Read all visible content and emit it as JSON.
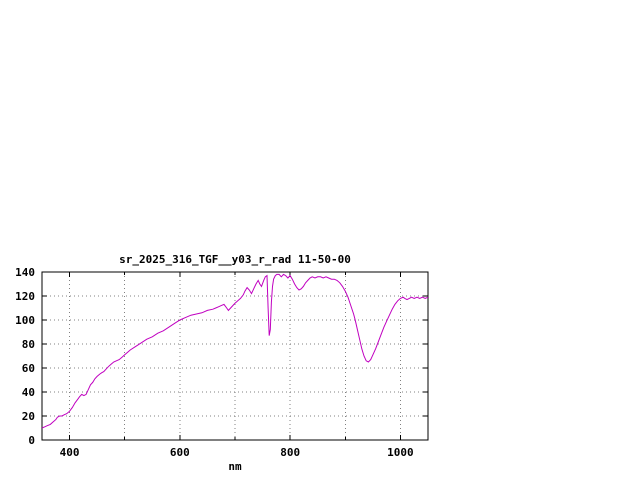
{
  "page": {
    "background": "#ffffff"
  },
  "chart_data": {
    "type": "line",
    "title": "sr_2025_316_TGF__y03_r_rad 11-50-00",
    "xlabel": "nm",
    "ylabel": "",
    "xlim": [
      350,
      1050
    ],
    "ylim": [
      0,
      140
    ],
    "xticks_labeled": [
      400,
      600,
      800,
      1000
    ],
    "xticks_minor": [
      500,
      700,
      900
    ],
    "xgrid_every": 100,
    "yticks": [
      0,
      20,
      40,
      60,
      80,
      100,
      120,
      140
    ],
    "grid": true,
    "legend": "none",
    "line_color": "#c000c0",
    "series": [
      {
        "name": "sr_2025_316_TGF__y03_r_rad",
        "points": [
          [
            350,
            10
          ],
          [
            355,
            11
          ],
          [
            360,
            12
          ],
          [
            365,
            13
          ],
          [
            370,
            15
          ],
          [
            375,
            17
          ],
          [
            378,
            19
          ],
          [
            382,
            20
          ],
          [
            386,
            20
          ],
          [
            390,
            21
          ],
          [
            395,
            22
          ],
          [
            400,
            24
          ],
          [
            405,
            27
          ],
          [
            410,
            31
          ],
          [
            415,
            34
          ],
          [
            418,
            36
          ],
          [
            422,
            38
          ],
          [
            426,
            37
          ],
          [
            430,
            38
          ],
          [
            434,
            42
          ],
          [
            438,
            46
          ],
          [
            442,
            48
          ],
          [
            446,
            51
          ],
          [
            450,
            53
          ],
          [
            455,
            55
          ],
          [
            458,
            56
          ],
          [
            462,
            57
          ],
          [
            466,
            59
          ],
          [
            470,
            61
          ],
          [
            475,
            63
          ],
          [
            480,
            65
          ],
          [
            485,
            66
          ],
          [
            490,
            67
          ],
          [
            495,
            69
          ],
          [
            500,
            71
          ],
          [
            510,
            75
          ],
          [
            520,
            78
          ],
          [
            530,
            81
          ],
          [
            540,
            84
          ],
          [
            550,
            86
          ],
          [
            560,
            89
          ],
          [
            570,
            91
          ],
          [
            580,
            94
          ],
          [
            590,
            97
          ],
          [
            600,
            100
          ],
          [
            610,
            102
          ],
          [
            620,
            104
          ],
          [
            630,
            105
          ],
          [
            640,
            106
          ],
          [
            650,
            108
          ],
          [
            660,
            109
          ],
          [
            665,
            110
          ],
          [
            670,
            111
          ],
          [
            675,
            112
          ],
          [
            680,
            113
          ],
          [
            685,
            110
          ],
          [
            688,
            108
          ],
          [
            692,
            110
          ],
          [
            696,
            112
          ],
          [
            700,
            114
          ],
          [
            705,
            116
          ],
          [
            710,
            118
          ],
          [
            715,
            121
          ],
          [
            718,
            124
          ],
          [
            722,
            127
          ],
          [
            726,
            125
          ],
          [
            730,
            122
          ],
          [
            734,
            126
          ],
          [
            738,
            130
          ],
          [
            742,
            133
          ],
          [
            745,
            130
          ],
          [
            748,
            128
          ],
          [
            752,
            133
          ],
          [
            755,
            136
          ],
          [
            758,
            137
          ],
          [
            760,
            110
          ],
          [
            762,
            87
          ],
          [
            764,
            92
          ],
          [
            766,
            115
          ],
          [
            768,
            128
          ],
          [
            770,
            134
          ],
          [
            773,
            137
          ],
          [
            776,
            138
          ],
          [
            780,
            138
          ],
          [
            784,
            136
          ],
          [
            788,
            138
          ],
          [
            792,
            137
          ],
          [
            796,
            135
          ],
          [
            800,
            137
          ],
          [
            804,
            134
          ],
          [
            808,
            130
          ],
          [
            812,
            127
          ],
          [
            816,
            125
          ],
          [
            820,
            126
          ],
          [
            824,
            128
          ],
          [
            828,
            131
          ],
          [
            832,
            133
          ],
          [
            836,
            135
          ],
          [
            840,
            136
          ],
          [
            845,
            135
          ],
          [
            850,
            136
          ],
          [
            855,
            136
          ],
          [
            860,
            135
          ],
          [
            865,
            136
          ],
          [
            870,
            135
          ],
          [
            875,
            134
          ],
          [
            880,
            134
          ],
          [
            885,
            133
          ],
          [
            890,
            131
          ],
          [
            895,
            128
          ],
          [
            900,
            124
          ],
          [
            905,
            119
          ],
          [
            910,
            112
          ],
          [
            915,
            105
          ],
          [
            918,
            100
          ],
          [
            922,
            92
          ],
          [
            926,
            84
          ],
          [
            930,
            76
          ],
          [
            934,
            70
          ],
          [
            938,
            66
          ],
          [
            942,
            65
          ],
          [
            946,
            67
          ],
          [
            950,
            71
          ],
          [
            955,
            76
          ],
          [
            960,
            82
          ],
          [
            965,
            88
          ],
          [
            970,
            94
          ],
          [
            975,
            99
          ],
          [
            980,
            104
          ],
          [
            985,
            109
          ],
          [
            990,
            113
          ],
          [
            995,
            116
          ],
          [
            1000,
            118
          ],
          [
            1005,
            119
          ],
          [
            1008,
            118
          ],
          [
            1012,
            117
          ],
          [
            1016,
            118
          ],
          [
            1020,
            119
          ],
          [
            1025,
            118
          ],
          [
            1030,
            119
          ],
          [
            1035,
            118
          ],
          [
            1040,
            119
          ],
          [
            1045,
            118
          ],
          [
            1050,
            119
          ]
        ]
      }
    ]
  }
}
